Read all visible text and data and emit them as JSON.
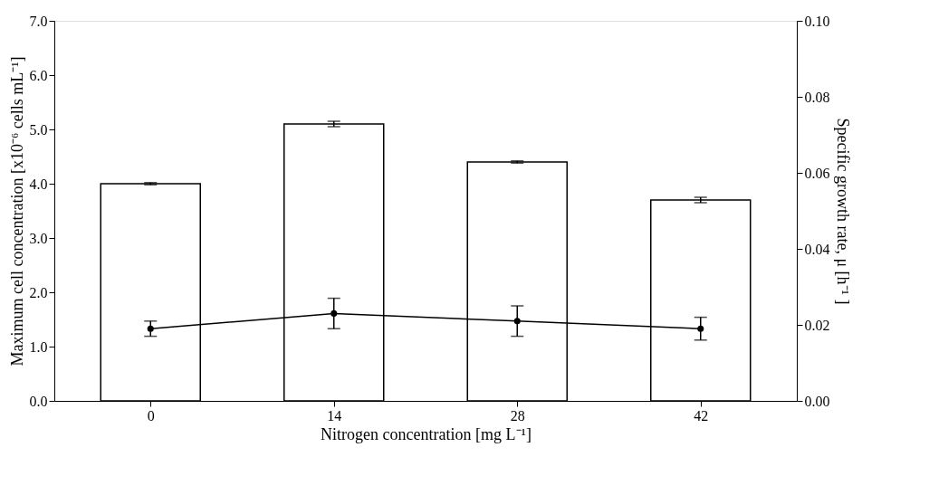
{
  "chart_data": {
    "type": "bar",
    "xlabel": "Nitrogen concentration [mg L⁻¹]",
    "ylabel": "Maximum cell concentration  [x10⁻⁶ cells mL⁻¹]",
    "y2label": "Specific growth rate, μ [h⁻¹ ]",
    "categories": [
      "0",
      "14",
      "28",
      "42"
    ],
    "series": [
      {
        "color": "#ffffff",
        "values": [
          4.0,
          5.1,
          4.4,
          3.7
        ],
        "errors": [
          0.02,
          0.05,
          0.02,
          0.05
        ]
      },
      {
        "type": "line",
        "axis": "y2",
        "color": "#000000",
        "marker": "circle",
        "line_style": "solid",
        "values": [
          0.019,
          0.023,
          0.021,
          0.019
        ],
        "errors": [
          0.002,
          0.004,
          0.004,
          0.003
        ]
      }
    ],
    "ylim": [
      0,
      7
    ],
    "yticks": [
      {
        "value": 0,
        "label": "0.0"
      },
      {
        "value": 1,
        "label": "1.0"
      },
      {
        "value": 2,
        "label": "2.0"
      },
      {
        "value": 3,
        "label": "3.0"
      },
      {
        "value": 4,
        "label": "4.0"
      },
      {
        "value": 5,
        "label": "5.0"
      },
      {
        "value": 6,
        "label": "6.0"
      },
      {
        "value": 7,
        "label": "7.0"
      }
    ],
    "y2lim": [
      0,
      0.1
    ],
    "y2ticks": [
      {
        "value": 0,
        "label": "0.00"
      },
      {
        "value": 0.02,
        "label": "0.02"
      },
      {
        "value": 0.04,
        "label": "0.04"
      },
      {
        "value": 0.06,
        "label": "0.06"
      },
      {
        "value": 0.08,
        "label": "0.08"
      },
      {
        "value": 0.1,
        "label": "0.10"
      }
    ],
    "grid": false
  }
}
